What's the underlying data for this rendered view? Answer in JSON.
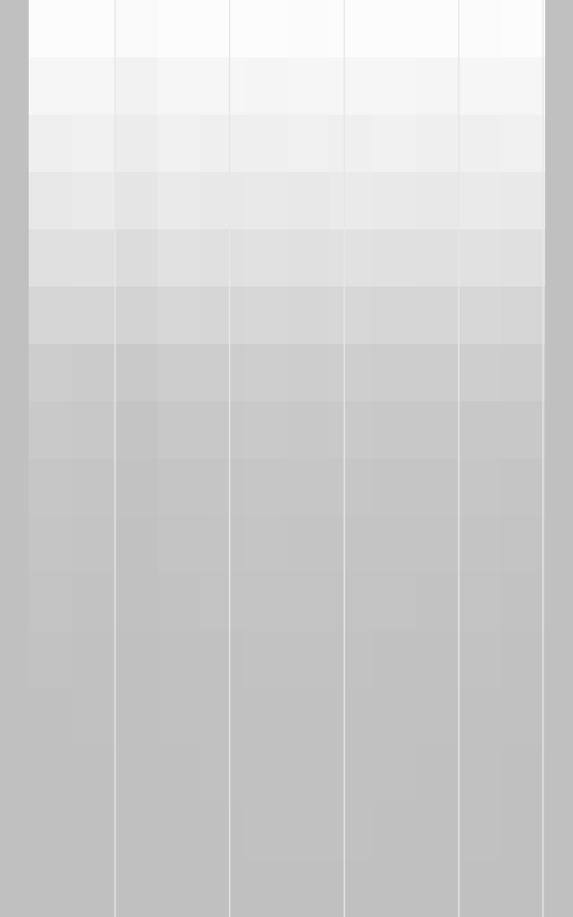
{
  "chart_data": {
    "type": "heatmap",
    "tick_labels": false,
    "color_range": [
      0,
      1
    ],
    "cells": [
      [
        0.95,
        0.95,
        0.9,
        0.95,
        0.95,
        0.95,
        0.93,
        0.95,
        0.95,
        0.95,
        0.93,
        0.95
      ],
      [
        0.85,
        0.85,
        0.8,
        0.85,
        0.86,
        0.84,
        0.85,
        0.86,
        0.85,
        0.84,
        0.85,
        0.86
      ],
      [
        0.75,
        0.76,
        0.7,
        0.76,
        0.75,
        0.74,
        0.76,
        0.75,
        0.77,
        0.74,
        0.75,
        0.76
      ],
      [
        0.62,
        0.66,
        0.58,
        0.66,
        0.64,
        0.65,
        0.63,
        0.66,
        0.65,
        0.64,
        0.66,
        0.65
      ],
      [
        0.5,
        0.5,
        0.45,
        0.52,
        0.5,
        0.52,
        0.5,
        0.52,
        0.5,
        0.5,
        0.52,
        0.5
      ],
      [
        0.35,
        0.33,
        0.3,
        0.36,
        0.35,
        0.37,
        0.35,
        0.36,
        0.34,
        0.35,
        0.36,
        0.34
      ],
      [
        0.2,
        0.18,
        0.15,
        0.2,
        0.2,
        0.22,
        0.2,
        0.22,
        0.2,
        0.2,
        0.22,
        0.2
      ],
      [
        0.14,
        0.12,
        0.06,
        0.12,
        0.12,
        0.14,
        0.12,
        0.14,
        0.12,
        0.12,
        0.13,
        0.12
      ],
      [
        0.1,
        0.08,
        0.03,
        0.08,
        0.08,
        0.1,
        0.09,
        0.1,
        0.08,
        0.08,
        0.1,
        0.08
      ],
      [
        0.08,
        0.06,
        0.02,
        0.05,
        0.06,
        0.08,
        0.06,
        0.07,
        0.06,
        0.06,
        0.07,
        0.05
      ],
      [
        0.05,
        0.03,
        0.01,
        0.03,
        0.04,
        0.05,
        0.04,
        0.05,
        0.04,
        0.03,
        0.05,
        0.03
      ],
      [
        0.03,
        0.02,
        0,
        0.02,
        0.02,
        0.03,
        0.03,
        0.03,
        0.02,
        0.02,
        0.03,
        0.02
      ],
      [
        0,
        0.01,
        0,
        0.01,
        0.01,
        0.02,
        0.02,
        0.02,
        0.01,
        0.01,
        0.02,
        0.01
      ],
      [
        0,
        0,
        0,
        0,
        0.01,
        0.01,
        0.01,
        0.01,
        0.01,
        0,
        0.01,
        0
      ],
      [
        0,
        0,
        0,
        0,
        0,
        0.01,
        0.01,
        0.01,
        0,
        0,
        0.01,
        0
      ],
      [
        0,
        0,
        0,
        0,
        0,
        0,
        0,
        0,
        0,
        0,
        0,
        0
      ]
    ]
  }
}
